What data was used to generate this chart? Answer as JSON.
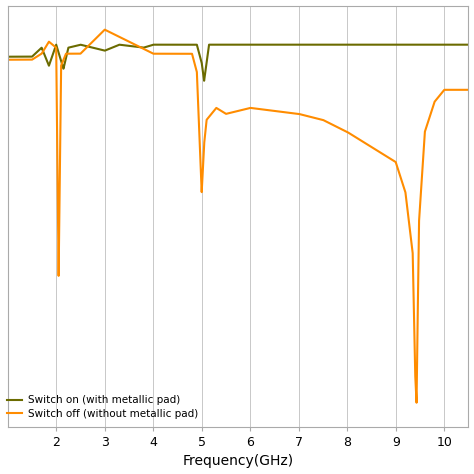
{
  "title": "",
  "xlabel": "Frequency(GHz)",
  "ylabel": "",
  "xlim": [
    1.0,
    10.5
  ],
  "ylim": [
    -65,
    5
  ],
  "xticks": [
    2,
    3,
    4,
    5,
    6,
    7,
    8,
    9,
    10
  ],
  "color_on": "#6B6B00",
  "color_off": "#FF8C00",
  "legend_on": "Switch on (with metallic pad)",
  "legend_off": "Switch off (without metallic pad)",
  "background_color": "#ffffff",
  "grid_color": "#c8c8c8"
}
